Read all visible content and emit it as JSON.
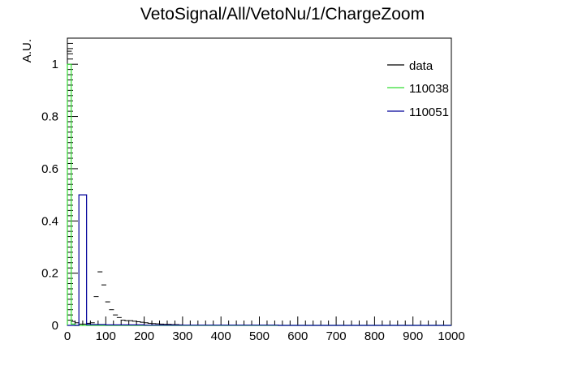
{
  "chart_data": {
    "type": "histogram",
    "title": "VetoSignal/All/VetoNu/1/ChargeZoom",
    "xlabel": "",
    "ylabel": "A.U.",
    "xlim": [
      0,
      1000
    ],
    "ylim": [
      0,
      1.1
    ],
    "x_ticks": [
      0,
      100,
      200,
      300,
      400,
      500,
      600,
      700,
      800,
      900,
      1000
    ],
    "y_ticks": [
      0,
      0.2,
      0.4,
      0.6,
      0.8,
      1
    ],
    "y_tick_labels": [
      "0",
      "0.2",
      "0.4",
      "0.6",
      "0.8",
      "1"
    ],
    "grid": false,
    "legend_position": "top-right",
    "series": [
      {
        "name": "data",
        "color": "#000000",
        "style": "markers",
        "points": [
          {
            "x": 5,
            "y": 1.05
          },
          {
            "x": 15,
            "y": 0.015
          },
          {
            "x": 25,
            "y": 0.01
          },
          {
            "x": 35,
            "y": 0.005
          },
          {
            "x": 45,
            "y": 0.005
          },
          {
            "x": 55,
            "y": 0.008
          },
          {
            "x": 65,
            "y": 0.01
          },
          {
            "x": 75,
            "y": 0.11
          },
          {
            "x": 85,
            "y": 0.205
          },
          {
            "x": 95,
            "y": 0.155
          },
          {
            "x": 105,
            "y": 0.09
          },
          {
            "x": 115,
            "y": 0.06
          },
          {
            "x": 125,
            "y": 0.04
          },
          {
            "x": 135,
            "y": 0.03
          },
          {
            "x": 145,
            "y": 0.02
          },
          {
            "x": 155,
            "y": 0.018
          },
          {
            "x": 165,
            "y": 0.018
          },
          {
            "x": 175,
            "y": 0.016
          },
          {
            "x": 185,
            "y": 0.014
          },
          {
            "x": 195,
            "y": 0.012
          },
          {
            "x": 205,
            "y": 0.01
          },
          {
            "x": 215,
            "y": 0.008
          },
          {
            "x": 225,
            "y": 0.007
          },
          {
            "x": 235,
            "y": 0.006
          },
          {
            "x": 245,
            "y": 0.005
          },
          {
            "x": 255,
            "y": 0.004
          },
          {
            "x": 265,
            "y": 0.004
          },
          {
            "x": 275,
            "y": 0.003
          },
          {
            "x": 285,
            "y": 0.003
          },
          {
            "x": 295,
            "y": 0.002
          }
        ]
      },
      {
        "name": "110038",
        "color": "#33dd33",
        "style": "step",
        "bin_edges": [
          0,
          10,
          20,
          1000
        ],
        "values": [
          1.0,
          0.005,
          0.0
        ]
      },
      {
        "name": "110051",
        "color": "#000099",
        "style": "step",
        "bin_edges": [
          0,
          10,
          20,
          30,
          50,
          100,
          200,
          300,
          550,
          1000
        ],
        "values": [
          0.0,
          0.0,
          0.0,
          0.5,
          0.003,
          0.002,
          0.001,
          0.001,
          0.0
        ]
      }
    ]
  }
}
